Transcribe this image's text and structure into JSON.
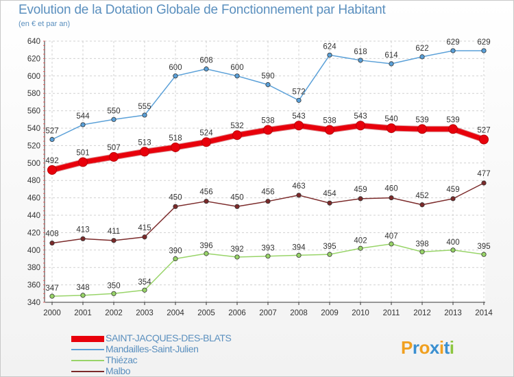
{
  "title": "Evolution de la Dotation Globale de Fonctionnement par Habitant",
  "subtitle": "(en € et par an)",
  "logo": {
    "letters": [
      "P",
      "r",
      "o",
      "x",
      "i",
      "t",
      "i"
    ],
    "colors": [
      "#f0a020",
      "#3a8fd0",
      "#f0a020",
      "#3a8fd0",
      "#f0a020",
      "#3a8fd0",
      "#8cc63f"
    ]
  },
  "chart_data": {
    "type": "line",
    "title": "Evolution de la Dotation Globale de Fonctionnement par Habitant",
    "ylabel": "(en € et par an)",
    "x": [
      "2000",
      "2001",
      "2002",
      "2003",
      "2004",
      "2005",
      "2006",
      "2007",
      "2008",
      "2009",
      "2010",
      "2011",
      "2012",
      "2013",
      "2014"
    ],
    "ylim": [
      340,
      640
    ],
    "yticks": [
      340,
      360,
      380,
      400,
      420,
      440,
      460,
      480,
      500,
      520,
      540,
      560,
      580,
      600,
      620,
      640
    ],
    "grid": true,
    "legend_position": "bottom-left",
    "series": [
      {
        "name": "SAINT-JACQUES-DES-BLATS",
        "color": "#e8000b",
        "values": [
          492,
          501,
          507,
          513,
          518,
          524,
          532,
          538,
          543,
          538,
          543,
          540,
          539,
          539,
          527
        ]
      },
      {
        "name": "Mandailles-Saint-Julien",
        "color": "#5aa0d8",
        "values": [
          527,
          544,
          550,
          555,
          600,
          608,
          600,
          590,
          572,
          624,
          618,
          614,
          622,
          629,
          629
        ]
      },
      {
        "name": "Thiézac",
        "color": "#98d468",
        "values": [
          347,
          348,
          350,
          354,
          390,
          396,
          392,
          393,
          394,
          395,
          402,
          407,
          398,
          400,
          395
        ]
      },
      {
        "name": "Malbo",
        "color": "#7b2a2a",
        "values": [
          408,
          413,
          411,
          415,
          450,
          456,
          450,
          456,
          463,
          454,
          459,
          460,
          452,
          459,
          477
        ]
      }
    ]
  }
}
